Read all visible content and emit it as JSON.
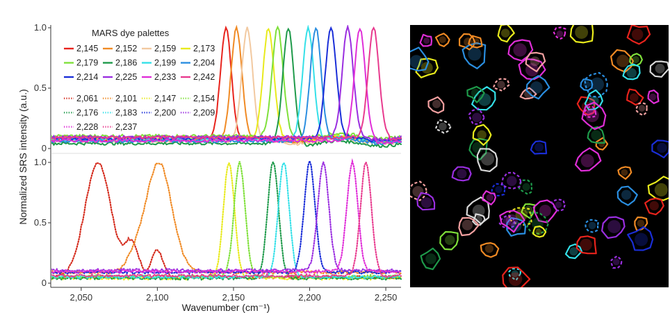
{
  "chart_data": [
    {
      "type": "line",
      "panel": "top",
      "title": "",
      "ylabel": "Normalized SRS intensity (a.u.)",
      "xlabel": "Wavenumber (cm⁻¹)",
      "xlim": [
        2030,
        2260
      ],
      "ylim": [
        0,
        1.0
      ],
      "y_ticks": [
        "0",
        "0.5",
        "1.0"
      ],
      "legend_title": "MARS dye palettes",
      "legend_position": "top-left",
      "series": [
        {
          "name": "2,145",
          "peak": 2145,
          "color": "#e8231c",
          "style": "solid"
        },
        {
          "name": "2,152",
          "peak": 2152,
          "color": "#f08a24",
          "style": "solid"
        },
        {
          "name": "2,159",
          "peak": 2159,
          "color": "#f2c9a0",
          "style": "solid"
        },
        {
          "name": "2,173",
          "peak": 2173,
          "color": "#e8ea1c",
          "style": "solid"
        },
        {
          "name": "2,179",
          "peak": 2179,
          "color": "#7fe03a",
          "style": "solid"
        },
        {
          "name": "2,186",
          "peak": 2186,
          "color": "#1e9a4a",
          "style": "solid"
        },
        {
          "name": "2,199",
          "peak": 2199,
          "color": "#34e0e8",
          "style": "solid"
        },
        {
          "name": "2,204",
          "peak": 2204,
          "color": "#2a8ee0",
          "style": "solid"
        },
        {
          "name": "2,214",
          "peak": 2214,
          "color": "#1a2ed8",
          "style": "solid"
        },
        {
          "name": "2,225",
          "peak": 2225,
          "color": "#9a2ee0",
          "style": "solid"
        },
        {
          "name": "2,233",
          "peak": 2233,
          "color": "#e02ed8",
          "style": "solid"
        },
        {
          "name": "2,242",
          "peak": 2242,
          "color": "#e83a8e",
          "style": "solid"
        }
      ]
    },
    {
      "type": "line",
      "panel": "bottom",
      "title": "",
      "xlabel": "Wavenumber (cm⁻¹)",
      "x_ticks": [
        "2,050",
        "2,100",
        "2,150",
        "2,200",
        "2,250"
      ],
      "x_tick_values": [
        2050,
        2100,
        2150,
        2200,
        2250
      ],
      "xlim": [
        2030,
        2260
      ],
      "ylim": [
        0,
        1.0
      ],
      "y_ticks": [
        "0",
        "0.5",
        "1.0"
      ],
      "series": [
        {
          "name": "2,061",
          "peak": 2061,
          "color": "#d42a1c",
          "style": "dotted"
        },
        {
          "name": "2,101",
          "peak": 2101,
          "color": "#f08a24",
          "style": "dotted"
        },
        {
          "name": "2,147",
          "peak": 2147,
          "color": "#e8ea1c",
          "style": "dotted"
        },
        {
          "name": "2,154",
          "peak": 2154,
          "color": "#7fe03a",
          "style": "dotted"
        },
        {
          "name": "2,176",
          "peak": 2176,
          "color": "#1e9a4a",
          "style": "dotted"
        },
        {
          "name": "2,183",
          "peak": 2183,
          "color": "#34e0e8",
          "style": "dotted"
        },
        {
          "name": "2,200",
          "peak": 2200,
          "color": "#1a2ed8",
          "style": "dotted"
        },
        {
          "name": "2,209",
          "peak": 2209,
          "color": "#9a2ee0",
          "style": "dotted"
        },
        {
          "name": "2,228",
          "peak": 2228,
          "color": "#e02ed8",
          "style": "dotted"
        },
        {
          "name": "2,237",
          "peak": 2237,
          "color": "#e83a8e",
          "style": "dotted"
        }
      ]
    }
  ],
  "microscopy": {
    "background": "#000000",
    "cell_colors": [
      "#e8231c",
      "#f08a24",
      "#e8ea1c",
      "#7fe03a",
      "#1e9a4a",
      "#34e0e8",
      "#2a8ee0",
      "#1a2ed8",
      "#9a2ee0",
      "#e02ed8",
      "#d8d8d8",
      "#f2a0a0"
    ]
  }
}
